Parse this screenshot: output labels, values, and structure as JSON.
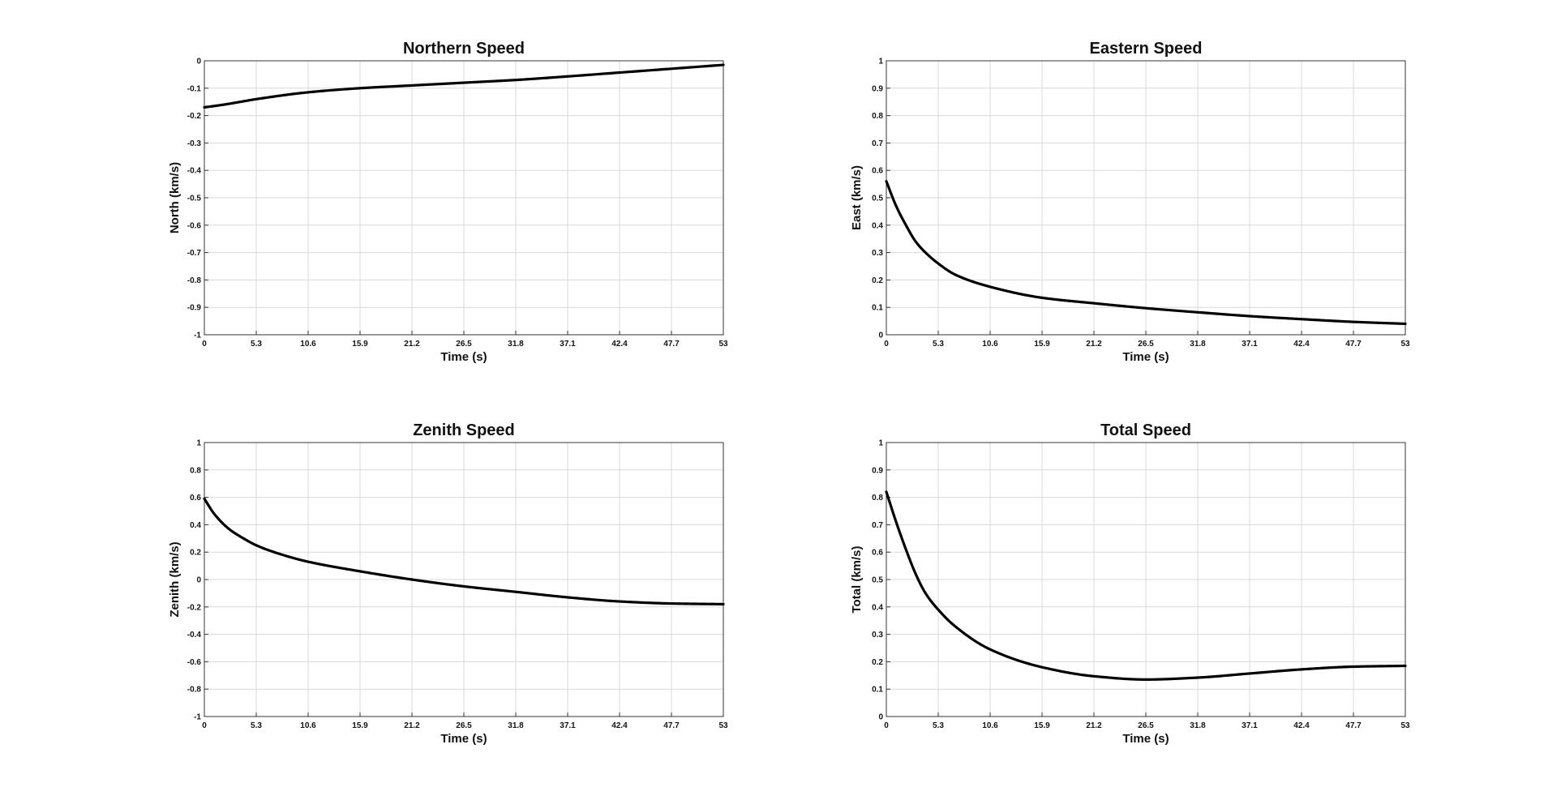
{
  "chart_data": [
    {
      "type": "line",
      "title": "Northern Speed",
      "xlabel": "Time (s)",
      "ylabel": "North (km/s)",
      "xlim": [
        0,
        53
      ],
      "ylim": [
        -1,
        0
      ],
      "xticks": [
        "0",
        "5.3",
        "10.6",
        "15.9",
        "21.2",
        "26.5",
        "31.8",
        "37.1",
        "42.4",
        "47.7",
        "53"
      ],
      "yticks": [
        "0",
        "-0.1",
        "-0.2",
        "-0.3",
        "-0.4",
        "-0.5",
        "-0.6",
        "-0.7",
        "-0.8",
        "-0.9",
        "-1"
      ],
      "grid": true,
      "x": [
        0,
        2,
        5.3,
        10.6,
        15.9,
        21.2,
        26.5,
        31.8,
        37.1,
        42.4,
        47.7,
        53
      ],
      "y": [
        -0.17,
        -0.16,
        -0.14,
        -0.115,
        -0.1,
        -0.09,
        -0.08,
        -0.07,
        -0.057,
        -0.043,
        -0.029,
        -0.015
      ]
    },
    {
      "type": "line",
      "title": "Eastern Speed",
      "xlabel": "Time (s)",
      "ylabel": "East (km/s)",
      "xlim": [
        0,
        53
      ],
      "ylim": [
        0,
        1
      ],
      "xticks": [
        "0",
        "5.3",
        "10.6",
        "15.9",
        "21.2",
        "26.5",
        "31.8",
        "37.1",
        "42.4",
        "47.7",
        "53"
      ],
      "yticks": [
        "0",
        "0.1",
        "0.2",
        "0.3",
        "0.4",
        "0.5",
        "0.6",
        "0.7",
        "0.8",
        "0.9",
        "1"
      ],
      "grid": true,
      "x": [
        0,
        1,
        2,
        3,
        4,
        5.3,
        7,
        10.6,
        15.9,
        21.2,
        26.5,
        31.8,
        37.1,
        42.4,
        47.7,
        53
      ],
      "y": [
        0.56,
        0.47,
        0.4,
        0.34,
        0.3,
        0.26,
        0.22,
        0.175,
        0.135,
        0.115,
        0.097,
        0.082,
        0.068,
        0.057,
        0.047,
        0.04
      ]
    },
    {
      "type": "line",
      "title": "Zenith Speed",
      "xlabel": "Time (s)",
      "ylabel": "Zenith (km/s)",
      "xlim": [
        0,
        53
      ],
      "ylim": [
        -1,
        1
      ],
      "xticks": [
        "0",
        "5.3",
        "10.6",
        "15.9",
        "21.2",
        "26.5",
        "31.8",
        "37.1",
        "42.4",
        "47.7",
        "53"
      ],
      "yticks": [
        "1",
        "0.8",
        "0.6",
        "0.4",
        "0.2",
        "0",
        "-0.2",
        "-0.4",
        "-0.6",
        "-0.8",
        "-1"
      ],
      "grid": true,
      "x": [
        0,
        1,
        2.5,
        4,
        5.3,
        8,
        10.6,
        15.9,
        21.2,
        26.5,
        31.8,
        37.1,
        42.4,
        47.7,
        53
      ],
      "y": [
        0.59,
        0.48,
        0.37,
        0.3,
        0.25,
        0.18,
        0.13,
        0.06,
        0.0,
        -0.05,
        -0.09,
        -0.13,
        -0.16,
        -0.175,
        -0.18
      ]
    },
    {
      "type": "line",
      "title": "Total Speed",
      "xlabel": "Time (s)",
      "ylabel": "Total (km/s)",
      "xlim": [
        0,
        53
      ],
      "ylim": [
        0,
        1
      ],
      "xticks": [
        "0",
        "5.3",
        "10.6",
        "15.9",
        "21.2",
        "26.5",
        "31.8",
        "37.1",
        "42.4",
        "47.7",
        "53"
      ],
      "yticks": [
        "0",
        "0.1",
        "0.2",
        "0.3",
        "0.4",
        "0.5",
        "0.6",
        "0.7",
        "0.8",
        "0.9",
        "1"
      ],
      "grid": true,
      "x": [
        0,
        1,
        2,
        3,
        4,
        5.3,
        7,
        10.6,
        15.9,
        21.2,
        26.5,
        31.8,
        37.1,
        42.4,
        47.7,
        53
      ],
      "y": [
        0.82,
        0.71,
        0.61,
        0.52,
        0.45,
        0.39,
        0.33,
        0.245,
        0.18,
        0.147,
        0.135,
        0.142,
        0.157,
        0.172,
        0.182,
        0.185
      ]
    }
  ]
}
